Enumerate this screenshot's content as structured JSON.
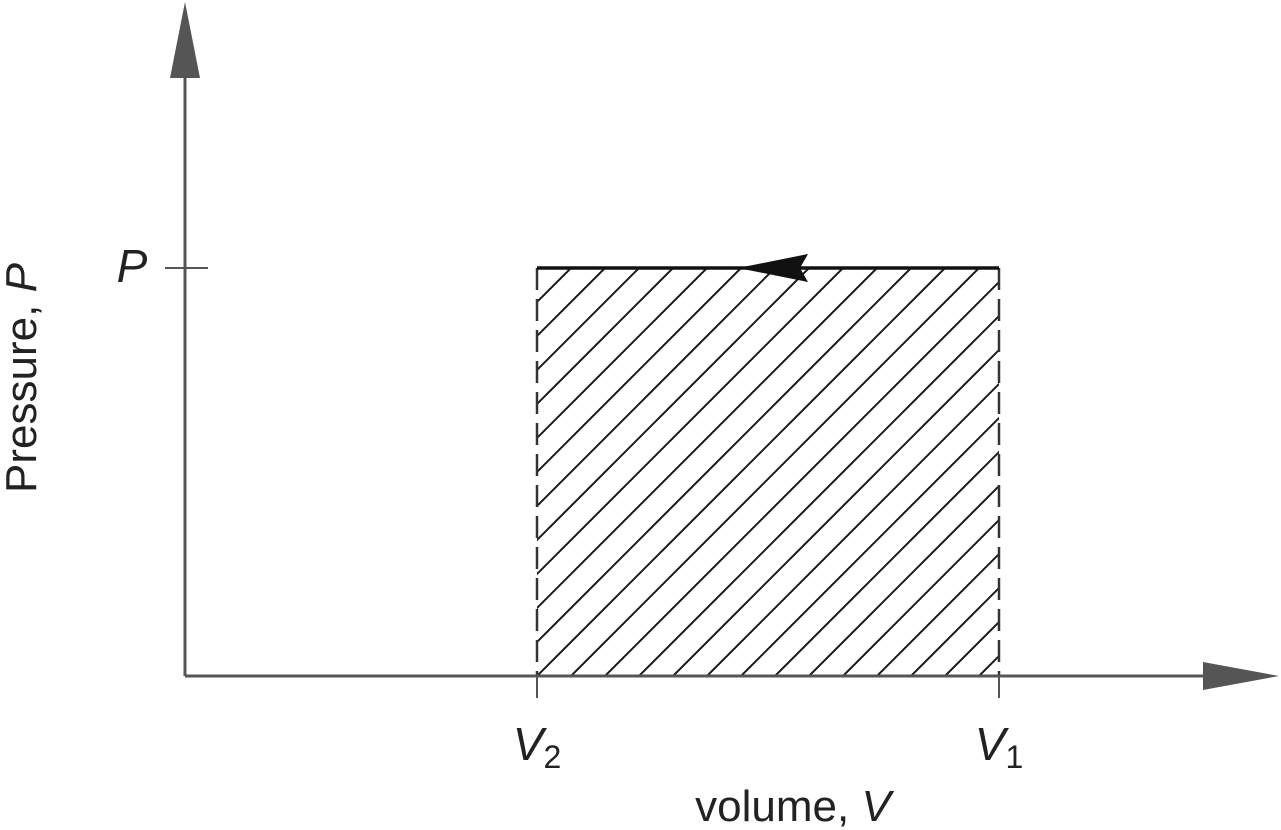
{
  "axes": {
    "y_label_text": "Pressure, ",
    "y_label_symbol": "P",
    "x_label_text": "volume, ",
    "x_label_symbol": "V"
  },
  "ticks": {
    "pressure": "P",
    "v2_symbol": "V",
    "v2_subscript": "2",
    "v1_symbol": "V",
    "v1_subscript": "1"
  },
  "colors": {
    "axis": "#555555",
    "hatch": "#1a1a1a",
    "arrow": "#111111"
  },
  "process": {
    "type": "isobaric compression",
    "direction": "from V1 to V2",
    "region": "hatched area under path = work"
  }
}
